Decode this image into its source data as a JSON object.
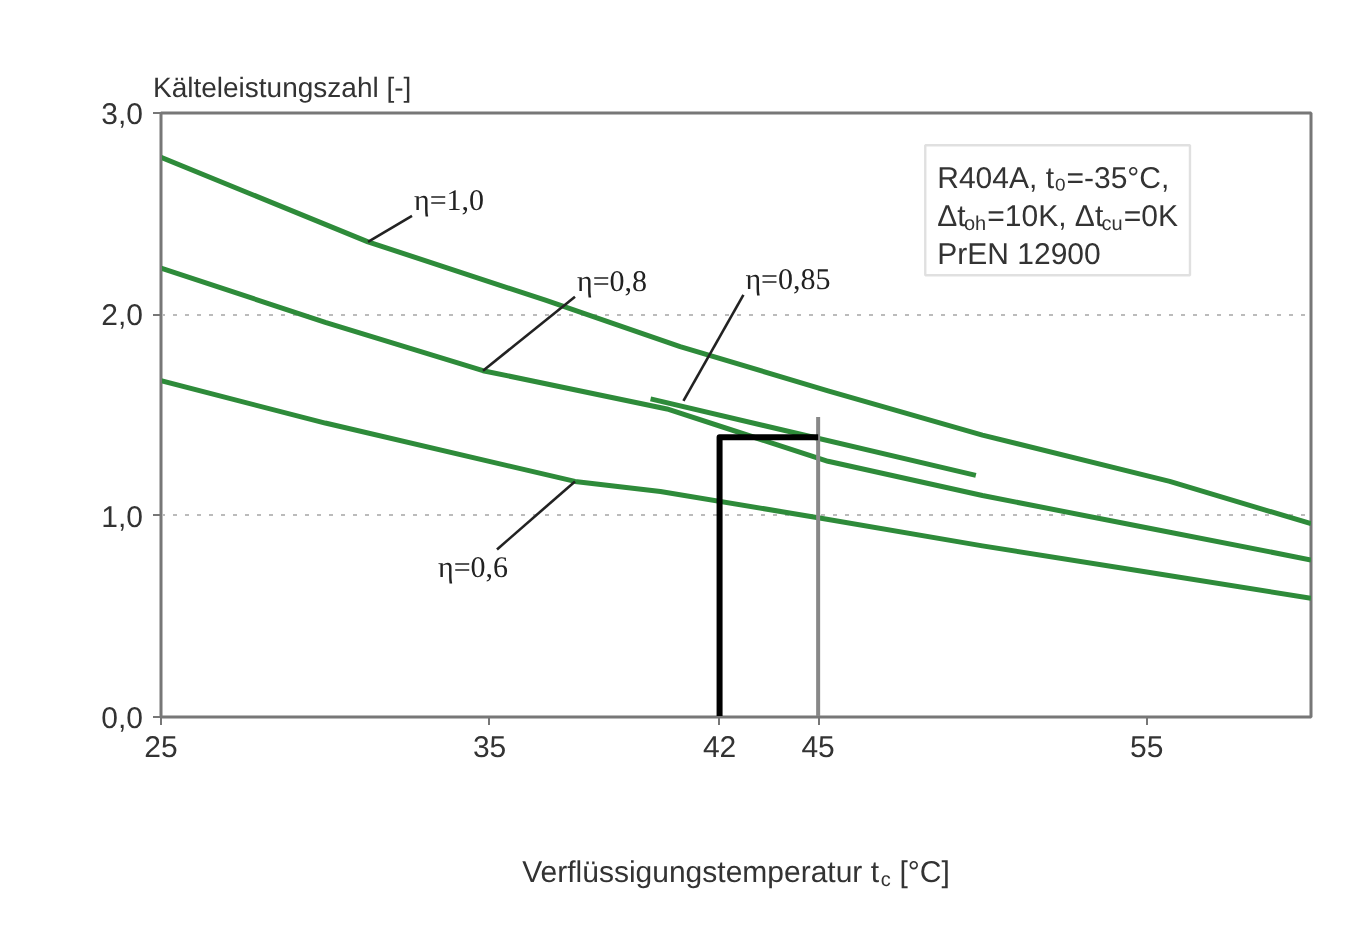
{
  "chart_data": {
    "type": "line",
    "xlabel": "Verflüssigungstemperatur t$_{c}$ [°C]",
    "ylabel": "Kälteleistungszahl [-]",
    "xlim": [
      25,
      60
    ],
    "ylim": [
      0,
      3
    ],
    "xticks": [
      25,
      35,
      42,
      45,
      55
    ],
    "yticks": [
      {
        "value": 0,
        "label": "0,0"
      },
      {
        "value": 1,
        "label": "1,0"
      },
      {
        "value": 2,
        "label": "2,0"
      },
      {
        "value": 3,
        "label": "3,0"
      }
    ],
    "grid": "y",
    "marker": "none",
    "line_style": "solid",
    "series": [
      {
        "color": "#2e8b3a",
        "x": [
          25,
          31.3,
          36.7,
          40.8,
          45.3,
          50,
          55.7,
          60
        ],
        "values": [
          2.78,
          2.36,
          2.07,
          1.84,
          1.62,
          1.4,
          1.17,
          0.96
        ]
      },
      {
        "color": "#2e8b3a",
        "x": [
          25,
          30,
          34.8,
          40.4,
          45.3,
          50,
          55,
          60
        ],
        "values": [
          2.23,
          1.96,
          1.72,
          1.53,
          1.27,
          1.1,
          0.94,
          0.78
        ]
      },
      {
        "color": "#2e8b3a",
        "x": [
          25,
          30,
          37.6,
          40.2,
          45,
          50,
          55,
          60
        ],
        "values": [
          1.67,
          1.46,
          1.17,
          1.12,
          0.99,
          0.85,
          0.72,
          0.59
        ]
      },
      {
        "color": "#2e8b3a",
        "x": [
          39.9,
          49.8
        ],
        "values": [
          1.58,
          1.2
        ]
      },
      {
        "color": "#888888",
        "x": [
          45,
          45
        ],
        "values": [
          0,
          1.49
        ]
      },
      {
        "color": "#000000",
        "x": [
          42,
          42,
          45
        ],
        "values": [
          0,
          1.39,
          1.39
        ]
      }
    ],
    "annotations": [
      {
        "text": "η=1,0",
        "x": 31.3,
        "y": 2.36
      },
      {
        "text": "η=0,8",
        "x": 34.8,
        "y": 1.72
      },
      {
        "text": "η=0,85",
        "x": 40.9,
        "y": 1.57
      },
      {
        "text": "η=0,6",
        "x": 37.6,
        "y": 1.17
      },
      "R404A, t₀=-35°C,",
      "Δt$_{oh}$=10K, Δt$_{cu}$=0K",
      "PrEN 12900"
    ]
  }
}
